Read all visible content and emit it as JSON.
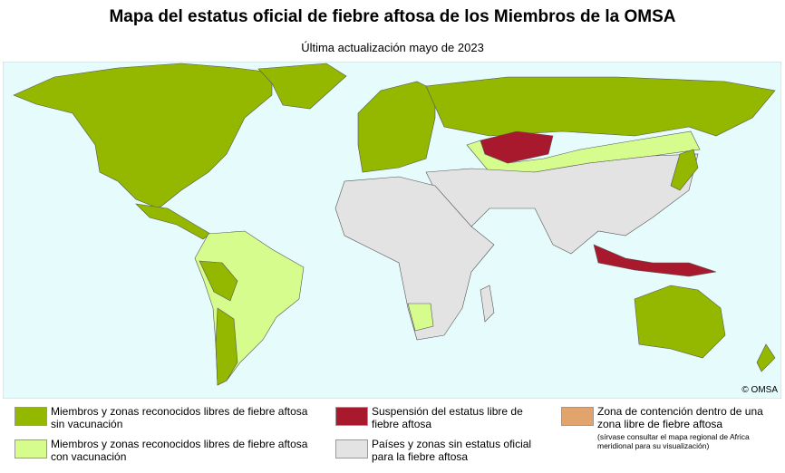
{
  "header": {
    "title": "Mapa del estatus oficial de fiebre aftosa de los Miembros de la OMSA",
    "subtitle": "Última actualización mayo de 2023"
  },
  "map": {
    "copyright": "© OMSA"
  },
  "legend": [
    {
      "color": "#94b800",
      "label": "Miembros y zonas reconocidos libres de fiebre aftosa sin vacunación"
    },
    {
      "color": "#d6fc8e",
      "label": "Miembros y zonas reconocidos libres de fiebre aftosa con vacunación"
    },
    {
      "color": "#a8192e",
      "label": "Suspensión del estatus libre de fiebre aftosa"
    },
    {
      "color": "#e3e3e3",
      "label": "Países y zonas sin estatus oficial para la fiebre aftosa"
    },
    {
      "color": "#e0a46c",
      "label": "Zona de contención dentro de una zona libre de fiebre aftosa",
      "note": "(sírvase consultar el mapa regional de Africa meridional para su visualización)"
    }
  ]
}
